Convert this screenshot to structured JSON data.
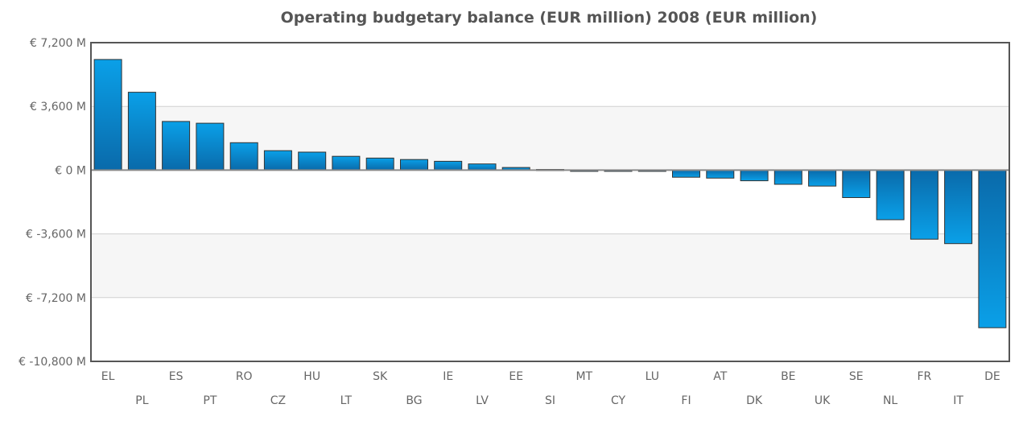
{
  "chart_data": {
    "type": "bar",
    "title": "Operating budgetary balance (EUR million) 2008 (EUR million)",
    "xlabel": "",
    "ylabel": "",
    "ylim": [
      -10800,
      7200
    ],
    "yticks": [
      7200,
      3600,
      0,
      -3600,
      -7200,
      -10800
    ],
    "ytick_labels": [
      "€ 7,200 M",
      "€ 3,600 M",
      "€ 0 M",
      "€ -3,600 M",
      "€ -7,200 M",
      "€ -10,800 M"
    ],
    "grid": true,
    "categories": [
      "EL",
      "PL",
      "ES",
      "PT",
      "RO",
      "CZ",
      "HU",
      "LT",
      "SK",
      "BG",
      "IE",
      "LV",
      "EE",
      "SI",
      "MT",
      "CY",
      "LU",
      "FI",
      "AT",
      "DK",
      "BE",
      "UK",
      "SE",
      "NL",
      "FR",
      "IT",
      "DE"
    ],
    "values": [
      6250,
      4400,
      2750,
      2650,
      1550,
      1100,
      1020,
      780,
      680,
      600,
      500,
      350,
      150,
      40,
      -20,
      -40,
      -60,
      -400,
      -450,
      -600,
      -800,
      -900,
      -1550,
      -2800,
      -3900,
      -4150,
      -8900
    ],
    "bar_color_top": "#0aa0e8",
    "bar_color_bottom": "#0a6aaa"
  }
}
